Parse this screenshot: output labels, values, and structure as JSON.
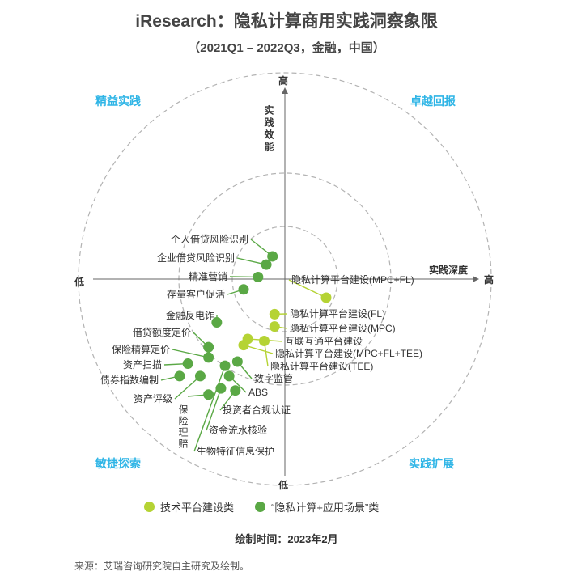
{
  "title": "iResearch：隐私计算商用实践洞察象限",
  "subtitle": "（2021Q1 – 2022Q3，金融，中国）",
  "quadrants": {
    "top_left": "精益实践",
    "top_right": "卓越回报",
    "bottom_left": "敏捷探索",
    "bottom_right": "实践扩展"
  },
  "axes": {
    "y_label": "实践效能",
    "y_high": "高",
    "y_low": "低",
    "x_label": "实践深度",
    "x_high": "高",
    "x_low": "低"
  },
  "colors": {
    "tech_platform": "#b5d334",
    "application": "#5aa845",
    "circle": "#b3b3b3",
    "quadrant_text": "#2fb5e6"
  },
  "legend": {
    "tech_platform": "技术平台建设类",
    "application": "“隐私计算+应用场景”类"
  },
  "footer_note": "绘制时间：2023年2月",
  "source": "来源：艾瑞咨询研究院自主研究及绘制。",
  "chart_data": {
    "type": "scatter",
    "xlabel": "实践深度",
    "ylabel": "实践效能",
    "xlim": [
      -1,
      1
    ],
    "ylim": [
      -1,
      1
    ],
    "series": [
      {
        "name": "技术平台建设类",
        "color": "#b5d334",
        "points": [
          {
            "label": "隐私计算平台建设(MPC+FL)",
            "x": 0.2,
            "y": -0.09
          },
          {
            "label": "隐私计算平台建设(FL)",
            "x": -0.05,
            "y": -0.17
          },
          {
            "label": "隐私计算平台建设(MPC)",
            "x": -0.05,
            "y": -0.23
          },
          {
            "label": "互联互通平台建设",
            "x": -0.18,
            "y": -0.29
          },
          {
            "label": "隐私计算平台建设(MPC+FL+TEE)",
            "x": -0.2,
            "y": -0.32
          },
          {
            "label": "隐私计算平台建设(TEE)",
            "x": -0.1,
            "y": -0.3
          }
        ]
      },
      {
        "name": "“隐私计算+应用场景”类",
        "color": "#5aa845",
        "points": [
          {
            "label": "个人借贷风险识别",
            "x": -0.06,
            "y": 0.11
          },
          {
            "label": "企业借贷风险识别",
            "x": -0.09,
            "y": 0.07
          },
          {
            "label": "精准营销",
            "x": -0.13,
            "y": 0.01
          },
          {
            "label": "存量客户促活",
            "x": -0.2,
            "y": -0.05
          },
          {
            "label": "金融反电诈",
            "x": -0.33,
            "y": -0.21
          },
          {
            "label": "借贷额度定价",
            "x": -0.37,
            "y": -0.33
          },
          {
            "label": "保险精算定价",
            "x": -0.37,
            "y": -0.38
          },
          {
            "label": "资产扫描",
            "x": -0.47,
            "y": -0.41
          },
          {
            "label": "债券指数编制",
            "x": -0.51,
            "y": -0.47
          },
          {
            "label": "资产评级",
            "x": -0.41,
            "y": -0.47
          },
          {
            "label": "保险理赔",
            "x": -0.37,
            "y": -0.56
          },
          {
            "label": "资金流水核验",
            "x": -0.31,
            "y": -0.53
          },
          {
            "label": "生物特征信息保护",
            "x": -0.29,
            "y": -0.42
          },
          {
            "label": "投资者合规认证",
            "x": -0.24,
            "y": -0.54
          },
          {
            "label": "ABS",
            "x": -0.27,
            "y": -0.47
          },
          {
            "label": "数字监管",
            "x": -0.23,
            "y": -0.4
          }
        ]
      }
    ]
  }
}
